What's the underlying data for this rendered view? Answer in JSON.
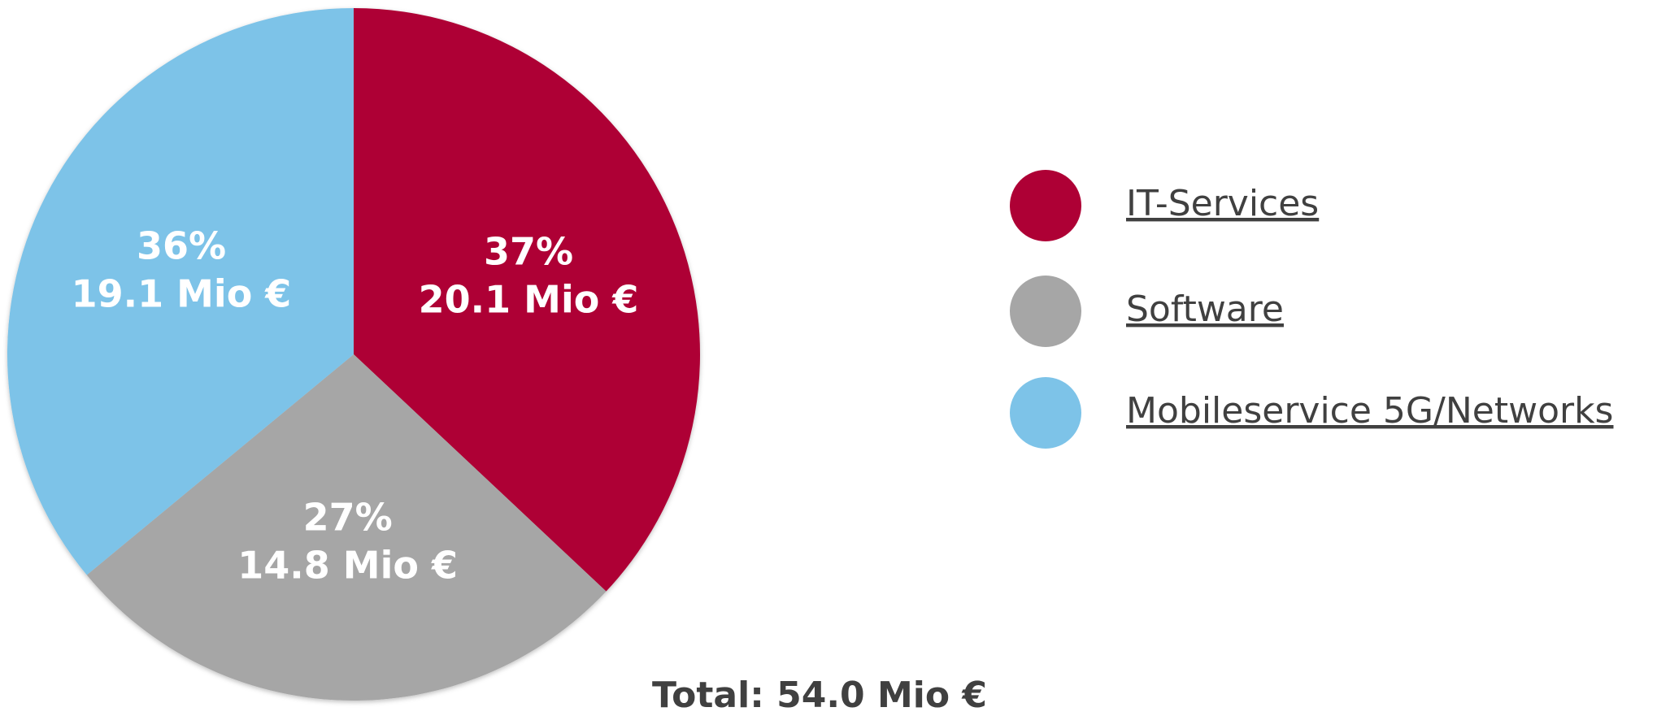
{
  "chart_data": {
    "type": "pie",
    "categories": [
      "IT-Services",
      "Software",
      "Mobileservice 5G/Networks"
    ],
    "values": [
      37,
      27,
      36
    ],
    "value_labels": [
      "37%",
      "27%",
      "36%"
    ],
    "amounts": [
      20.1,
      14.8,
      19.1
    ],
    "amount_labels": [
      "20.1 Mio €",
      "14.8 Mio €",
      "19.1 Mio €"
    ],
    "colors": [
      "#ae0035",
      "#a6a6a6",
      "#7dc3e8"
    ],
    "annotation": "Total: 54.0 Mio €",
    "legend": "right"
  }
}
